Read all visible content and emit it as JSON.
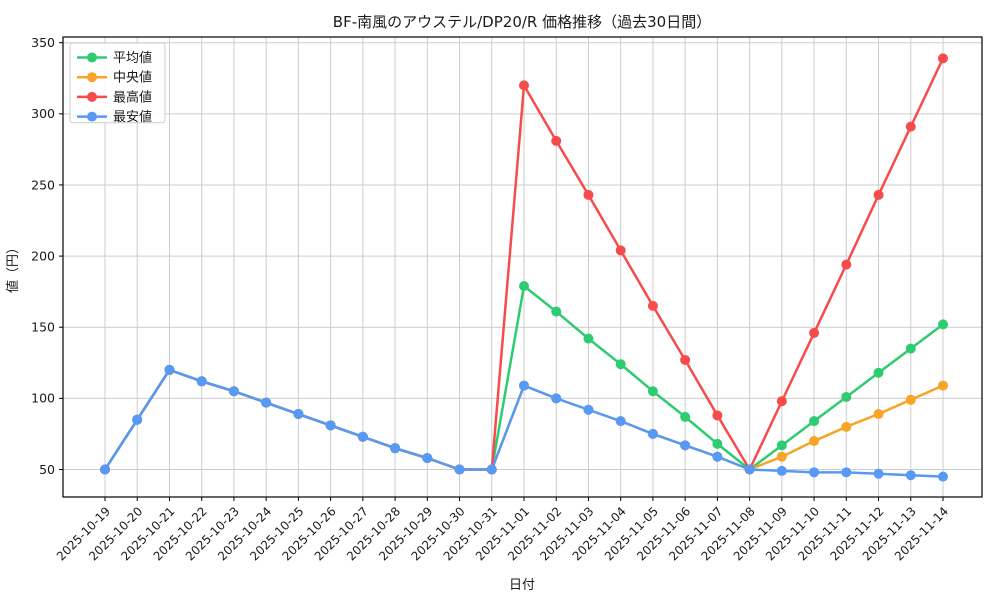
{
  "chart_data": {
    "type": "line",
    "title": "BF-南風のアウステル/DP20/R 価格推移（過去30日間）",
    "xlabel": "日付",
    "ylabel": "値（円）",
    "grid": true,
    "legend_position": "upper left",
    "ylim": [
      31,
      355
    ],
    "yticks": [
      50,
      100,
      150,
      200,
      250,
      300,
      350
    ],
    "categories": [
      "2025-10-19",
      "2025-10-20",
      "2025-10-21",
      "2025-10-22",
      "2025-10-23",
      "2025-10-24",
      "2025-10-25",
      "2025-10-26",
      "2025-10-27",
      "2025-10-28",
      "2025-10-29",
      "2025-10-30",
      "2025-10-31",
      "2025-11-01",
      "2025-11-02",
      "2025-11-03",
      "2025-11-04",
      "2025-11-05",
      "2025-11-06",
      "2025-11-07",
      "2025-11-08",
      "2025-11-09",
      "2025-11-10",
      "2025-11-11",
      "2025-11-12",
      "2025-11-13",
      "2025-11-14"
    ],
    "series": [
      {
        "name": "平均値",
        "color": "#2ecc71",
        "values": [
          50,
          85,
          120,
          112,
          105,
          97,
          89,
          81,
          73,
          65,
          58,
          50,
          50,
          179,
          161,
          142,
          124,
          105,
          87,
          68,
          50,
          67,
          84,
          101,
          118,
          135,
          152
        ]
      },
      {
        "name": "中央値",
        "color": "#f7a428",
        "values": [
          50,
          85,
          120,
          112,
          105,
          97,
          89,
          81,
          73,
          65,
          58,
          50,
          50,
          109,
          100,
          92,
          84,
          75,
          67,
          59,
          50,
          59,
          70,
          80,
          89,
          99,
          109
        ]
      },
      {
        "name": "最高値",
        "color": "#f64c4c",
        "values": [
          50,
          85,
          120,
          112,
          105,
          97,
          89,
          81,
          73,
          65,
          58,
          50,
          50,
          320,
          281,
          243,
          204,
          165,
          127,
          88,
          50,
          98,
          146,
          194,
          243,
          291,
          339
        ]
      },
      {
        "name": "最安値",
        "color": "#569af6",
        "values": [
          50,
          85,
          120,
          112,
          105,
          97,
          89,
          81,
          73,
          65,
          58,
          50,
          50,
          109,
          100,
          92,
          84,
          75,
          67,
          59,
          50,
          49,
          48,
          48,
          47,
          46,
          45
        ]
      }
    ]
  }
}
